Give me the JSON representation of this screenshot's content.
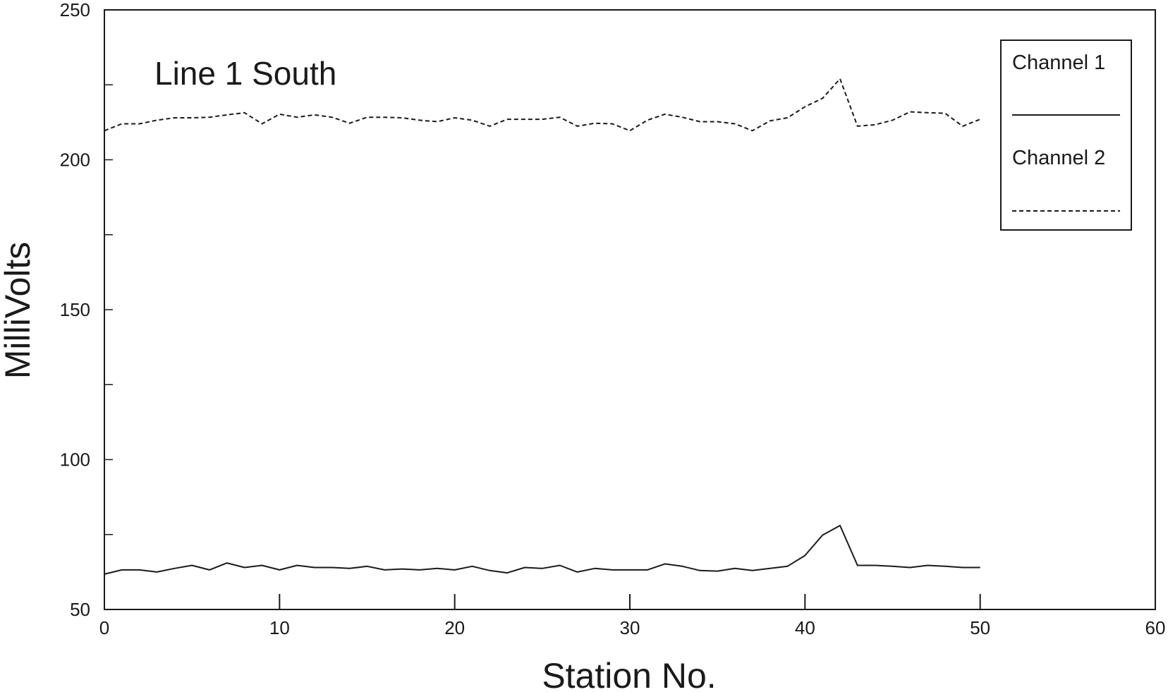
{
  "chart_data": {
    "type": "line",
    "title": "Line 1 South",
    "xlabel": "Station No.",
    "ylabel": "MilliVolts",
    "xlim": [
      0,
      60
    ],
    "ylim": [
      50,
      250
    ],
    "x_ticks": [
      0,
      10,
      20,
      30,
      40,
      50,
      60
    ],
    "x_tick_labels": [
      "0",
      "10",
      "20",
      "30",
      "40",
      "50",
      "60"
    ],
    "y_ticks": [
      50,
      100,
      150,
      200,
      250
    ],
    "y_tick_labels": [
      "50",
      "100",
      "150",
      "200",
      "250"
    ],
    "grid": false,
    "legend_position": "top-right",
    "x": [
      0,
      1,
      2,
      3,
      4,
      5,
      6,
      7,
      8,
      9,
      10,
      11,
      12,
      13,
      14,
      15,
      16,
      17,
      18,
      19,
      20,
      21,
      22,
      23,
      24,
      25,
      26,
      27,
      28,
      29,
      30,
      31,
      32,
      33,
      34,
      35,
      36,
      37,
      38,
      39,
      40,
      41,
      42,
      43,
      44,
      45,
      46,
      47,
      48,
      49,
      50
    ],
    "series": [
      {
        "name": "Channel 1",
        "line_style": "solid",
        "color": "#1a1a1a",
        "values": [
          61.8,
          63.2,
          63.2,
          62.5,
          63.7,
          64.7,
          63.2,
          65.5,
          64.0,
          64.7,
          63.2,
          64.7,
          64.0,
          64.0,
          63.7,
          64.4,
          63.2,
          63.5,
          63.2,
          63.7,
          63.2,
          64.4,
          63.0,
          62.2,
          64.0,
          63.7,
          64.7,
          62.5,
          63.7,
          63.2,
          63.2,
          63.2,
          65.2,
          64.4,
          63.0,
          62.8,
          63.7,
          63.0,
          63.7,
          64.4,
          68.0,
          74.8,
          78.0,
          64.7,
          64.7,
          64.4,
          64.0,
          64.7,
          64.4,
          64.0,
          64.0
        ]
      },
      {
        "name": "Channel 2",
        "line_style": "dashed",
        "color": "#1a1a1a",
        "values": [
          209.7,
          212.0,
          212.0,
          213.2,
          214.0,
          214.0,
          214.2,
          215.0,
          215.7,
          212.0,
          215.2,
          214.2,
          215.0,
          214.2,
          212.2,
          214.2,
          214.2,
          214.0,
          213.2,
          212.7,
          214.0,
          213.2,
          211.2,
          213.5,
          213.5,
          213.5,
          214.2,
          211.2,
          212.2,
          212.0,
          209.7,
          213.2,
          215.2,
          214.2,
          212.7,
          212.7,
          212.0,
          209.7,
          213.0,
          214.0,
          217.7,
          220.5,
          227.0,
          211.2,
          211.7,
          213.2,
          216.0,
          215.7,
          215.5,
          211.2,
          213.5
        ]
      }
    ]
  }
}
